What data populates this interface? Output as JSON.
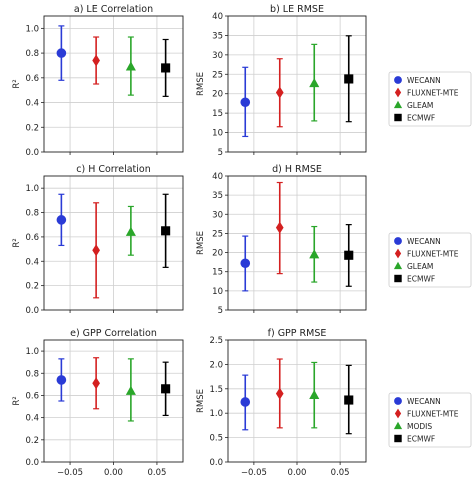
{
  "colors": {
    "WECANN": "#2a3bd6",
    "FLUXNET-MTE": "#d42020",
    "GLEAM": "#2aa62a",
    "MODIS": "#2aa62a",
    "ECMWF": "#000000",
    "grid": "#cfcfcf"
  },
  "legends": [
    {
      "entries": [
        {
          "name": "WECANN",
          "marker": "circle"
        },
        {
          "name": "FLUXNET-MTE",
          "marker": "diamond"
        },
        {
          "name": "GLEAM",
          "marker": "triangle"
        },
        {
          "name": "ECMWF",
          "marker": "square"
        }
      ]
    },
    {
      "entries": [
        {
          "name": "WECANN",
          "marker": "circle"
        },
        {
          "name": "FLUXNET-MTE",
          "marker": "diamond"
        },
        {
          "name": "GLEAM",
          "marker": "triangle"
        },
        {
          "name": "ECMWF",
          "marker": "square"
        }
      ]
    },
    {
      "entries": [
        {
          "name": "WECANN",
          "marker": "circle"
        },
        {
          "name": "FLUXNET-MTE",
          "marker": "diamond"
        },
        {
          "name": "MODIS",
          "marker": "triangle"
        },
        {
          "name": "ECMWF",
          "marker": "square"
        }
      ]
    }
  ],
  "chart_data": [
    {
      "type": "scatter",
      "title": "a) LE Correlation",
      "ylabel": "R²",
      "xlabel": "",
      "xlim": [
        -0.08,
        0.08
      ],
      "ylim": [
        0.0,
        1.1
      ],
      "yticks": [
        "0.0",
        "0.2",
        "0.4",
        "0.6",
        "0.8",
        "1.0"
      ],
      "xticks": [],
      "grid": true,
      "points": [
        {
          "dataset": "WECANN",
          "x": -0.06,
          "y": 0.8,
          "low": 0.58,
          "high": 1.02
        },
        {
          "dataset": "FLUXNET-MTE",
          "x": -0.02,
          "y": 0.74,
          "low": 0.55,
          "high": 0.93
        },
        {
          "dataset": "GLEAM",
          "x": 0.02,
          "y": 0.69,
          "low": 0.46,
          "high": 0.93
        },
        {
          "dataset": "ECMWF",
          "x": 0.06,
          "y": 0.68,
          "low": 0.45,
          "high": 0.91
        }
      ]
    },
    {
      "type": "scatter",
      "title": "b) LE RMSE",
      "ylabel": "RMSE",
      "xlabel": "",
      "xlim": [
        -0.08,
        0.08
      ],
      "ylim": [
        5,
        40
      ],
      "yticks": [
        "5",
        "10",
        "15",
        "20",
        "25",
        "30",
        "35",
        "40"
      ],
      "xticks": [],
      "grid": true,
      "points": [
        {
          "dataset": "WECANN",
          "x": -0.06,
          "y": 17.8,
          "low": 9.0,
          "high": 26.8
        },
        {
          "dataset": "FLUXNET-MTE",
          "x": -0.02,
          "y": 20.3,
          "low": 11.5,
          "high": 29.0
        },
        {
          "dataset": "GLEAM",
          "x": 0.02,
          "y": 22.7,
          "low": 13.0,
          "high": 32.7
        },
        {
          "dataset": "ECMWF",
          "x": 0.06,
          "y": 23.8,
          "low": 12.8,
          "high": 34.9
        }
      ]
    },
    {
      "type": "scatter",
      "title": "c) H Correlation",
      "ylabel": "R²",
      "xlabel": "",
      "xlim": [
        -0.08,
        0.08
      ],
      "ylim": [
        0.0,
        1.1
      ],
      "yticks": [
        "0.0",
        "0.2",
        "0.4",
        "0.6",
        "0.8",
        "1.0"
      ],
      "xticks": [],
      "grid": true,
      "points": [
        {
          "dataset": "WECANN",
          "x": -0.06,
          "y": 0.74,
          "low": 0.53,
          "high": 0.95
        },
        {
          "dataset": "FLUXNET-MTE",
          "x": -0.02,
          "y": 0.49,
          "low": 0.1,
          "high": 0.88
        },
        {
          "dataset": "GLEAM",
          "x": 0.02,
          "y": 0.64,
          "low": 0.45,
          "high": 0.85
        },
        {
          "dataset": "ECMWF",
          "x": 0.06,
          "y": 0.65,
          "low": 0.35,
          "high": 0.95
        }
      ]
    },
    {
      "type": "scatter",
      "title": "d) H RMSE",
      "ylabel": "RMSE",
      "xlabel": "",
      "xlim": [
        -0.08,
        0.08
      ],
      "ylim": [
        5,
        40
      ],
      "yticks": [
        "5",
        "10",
        "15",
        "20",
        "25",
        "30",
        "35",
        "40"
      ],
      "xticks": [],
      "grid": true,
      "points": [
        {
          "dataset": "WECANN",
          "x": -0.06,
          "y": 17.2,
          "low": 10.0,
          "high": 24.3
        },
        {
          "dataset": "FLUXNET-MTE",
          "x": -0.02,
          "y": 26.5,
          "low": 14.5,
          "high": 38.3
        },
        {
          "dataset": "GLEAM",
          "x": 0.02,
          "y": 19.5,
          "low": 12.3,
          "high": 26.8
        },
        {
          "dataset": "ECMWF",
          "x": 0.06,
          "y": 19.3,
          "low": 11.2,
          "high": 27.3
        }
      ]
    },
    {
      "type": "scatter",
      "title": "e) GPP Correlation",
      "ylabel": "R²",
      "xlabel": "",
      "xlim": [
        -0.08,
        0.08
      ],
      "ylim": [
        0.0,
        1.1
      ],
      "yticks": [
        "0.0",
        "0.2",
        "0.4",
        "0.6",
        "0.8",
        "1.0"
      ],
      "xticks": [
        "−0.05",
        "0.00",
        "0.05"
      ],
      "grid": true,
      "points": [
        {
          "dataset": "WECANN",
          "x": -0.06,
          "y": 0.74,
          "low": 0.55,
          "high": 0.93
        },
        {
          "dataset": "FLUXNET-MTE",
          "x": -0.02,
          "y": 0.71,
          "low": 0.48,
          "high": 0.94
        },
        {
          "dataset": "MODIS",
          "x": 0.02,
          "y": 0.64,
          "low": 0.37,
          "high": 0.93
        },
        {
          "dataset": "ECMWF",
          "x": 0.06,
          "y": 0.66,
          "low": 0.42,
          "high": 0.9
        }
      ]
    },
    {
      "type": "scatter",
      "title": "f) GPP RMSE",
      "ylabel": "RMSE",
      "xlabel": "",
      "xlim": [
        -0.08,
        0.08
      ],
      "ylim": [
        0.0,
        2.5
      ],
      "yticks": [
        "0.0",
        "0.5",
        "1.0",
        "1.5",
        "2.0",
        "2.5"
      ],
      "xticks": [
        "−0.05",
        "0.00",
        "0.05"
      ],
      "grid": true,
      "points": [
        {
          "dataset": "WECANN",
          "x": -0.06,
          "y": 1.23,
          "low": 0.66,
          "high": 1.78
        },
        {
          "dataset": "FLUXNET-MTE",
          "x": -0.02,
          "y": 1.4,
          "low": 0.7,
          "high": 2.11
        },
        {
          "dataset": "MODIS",
          "x": 0.02,
          "y": 1.37,
          "low": 0.7,
          "high": 2.04
        },
        {
          "dataset": "ECMWF",
          "x": 0.06,
          "y": 1.27,
          "low": 0.58,
          "high": 1.98
        }
      ]
    }
  ]
}
